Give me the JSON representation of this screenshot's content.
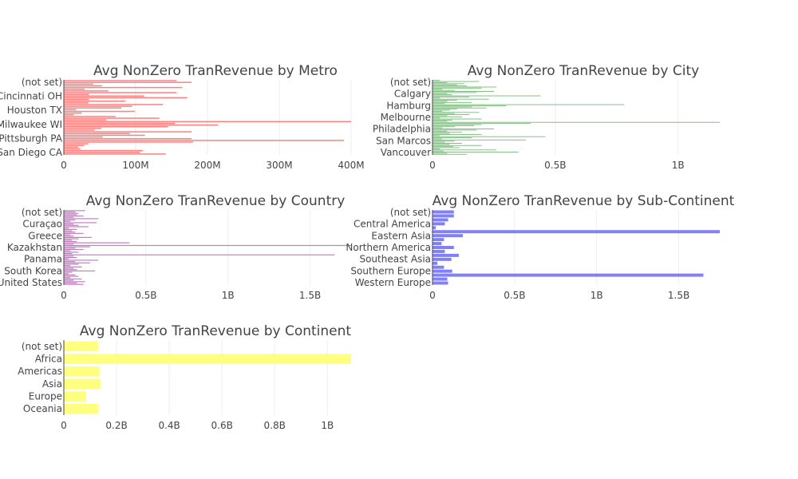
{
  "chart_data": [
    {
      "type": "bar",
      "orientation": "h",
      "title": "Avg NonZero TranRevenue by Metro",
      "color": "#ff7f7f",
      "y_tick_labels": [
        "San Diego CA",
        "Pittsburgh PA",
        "Milwaukee WI",
        "Houston TX",
        "Cincinnati OH",
        "(not set)"
      ],
      "x_tick_labels": [
        "0",
        "100M",
        "200M",
        "300M",
        "400M"
      ],
      "x_ticks": [
        0,
        100000000,
        200000000,
        300000000,
        400000000
      ],
      "xlim": [
        0,
        400000000
      ],
      "values": [
        142000000,
        106000000,
        110000000,
        23000000,
        20000000,
        28000000,
        34000000,
        180000000,
        390000000,
        178000000,
        54000000,
        113000000,
        92000000,
        178000000,
        43000000,
        52000000,
        145000000,
        215000000,
        155000000,
        400000000,
        59000000,
        133000000,
        72000000,
        14000000,
        25000000,
        99000000,
        17000000,
        80000000,
        95000000,
        138000000,
        34000000,
        86000000,
        35000000,
        172000000,
        112000000,
        35000000,
        157000000,
        62000000,
        29000000,
        165000000,
        53000000,
        41000000,
        178000000,
        157000000
      ]
    },
    {
      "type": "bar",
      "orientation": "h",
      "title": "Avg NonZero TranRevenue by City",
      "color": "#7fbf7f",
      "y_tick_labels": [
        "Vancouver",
        "San Marcos",
        "Philadelphia",
        "Melbourne",
        "Hamburg",
        "Calgary",
        "(not set)"
      ],
      "x_tick_labels": [
        "0",
        "0.5B",
        "1B"
      ],
      "x_ticks": [
        0,
        500000000,
        1000000000
      ],
      "xlim": [
        0,
        1170000000
      ],
      "values": [
        140000000,
        60000000,
        350000000,
        45000000,
        260000000,
        30000000,
        110000000,
        85000000,
        200000000,
        70000000,
        120000000,
        50000000,
        90000000,
        380000000,
        40000000,
        160000000,
        460000000,
        30000000,
        200000000,
        70000000,
        120000000,
        60000000,
        180000000,
        250000000,
        40000000,
        90000000,
        170000000,
        200000000,
        400000000,
        1170000000,
        60000000,
        80000000,
        200000000,
        30000000,
        120000000,
        60000000,
        150000000,
        90000000,
        190000000,
        40000000,
        70000000,
        100000000,
        220000000,
        160000000,
        300000000,
        780000000,
        50000000,
        160000000,
        60000000,
        100000000,
        230000000,
        30000000,
        150000000,
        440000000,
        80000000,
        60000000,
        180000000,
        250000000,
        90000000,
        40000000,
        200000000,
        260000000,
        140000000,
        100000000,
        130000000,
        60000000,
        190000000,
        30000000
      ]
    },
    {
      "type": "bar",
      "orientation": "h",
      "title": "Avg NonZero TranRevenue by Country",
      "color": "#bf7fbf",
      "y_tick_labels": [
        "United States",
        "South Korea",
        "Panama",
        "Kazakhstan",
        "Greece",
        "Curaçao",
        "(not set)"
      ],
      "x_tick_labels": [
        "0",
        "0.5B",
        "1B",
        "1.5B"
      ],
      "x_ticks": [
        0,
        500000000,
        1000000000,
        1500000000
      ],
      "xlim": [
        0,
        1750000000
      ],
      "values": [
        120000000,
        80000000,
        130000000,
        60000000,
        110000000,
        40000000,
        90000000,
        70000000,
        30000000,
        50000000,
        190000000,
        80000000,
        60000000,
        110000000,
        40000000,
        90000000,
        160000000,
        70000000,
        210000000,
        30000000,
        80000000,
        60000000,
        1650000000,
        50000000,
        90000000,
        40000000,
        120000000,
        70000000,
        160000000,
        1750000000,
        60000000,
        400000000,
        80000000,
        50000000,
        90000000,
        170000000,
        60000000,
        40000000,
        120000000,
        70000000,
        50000000,
        80000000,
        30000000,
        150000000,
        90000000,
        60000000,
        200000000,
        40000000,
        70000000,
        210000000,
        60000000,
        120000000,
        80000000,
        90000000,
        70000000,
        130000000
      ]
    },
    {
      "type": "bar",
      "orientation": "h",
      "title": "Avg NonZero TranRevenue by Sub-Continent",
      "color": "#7f7fff",
      "y_tick_labels": [
        "Western Europe",
        "Southern Europe",
        "Southeast Asia",
        "Northern America",
        "Eastern Asia",
        "Central America",
        "(not set)"
      ],
      "x_tick_labels": [
        "0",
        "0.5B",
        "1B",
        "1.5B"
      ],
      "x_ticks": [
        0,
        500000000,
        1000000000,
        1500000000
      ],
      "xlim": [
        0,
        1750000000
      ],
      "values": [
        95000000,
        90000000,
        1650000000,
        120000000,
        70000000,
        30000000,
        115000000,
        160000000,
        75000000,
        130000000,
        55000000,
        70000000,
        185000000,
        1750000000,
        20000000,
        75000000,
        95000000,
        130000000,
        130000000
      ]
    },
    {
      "type": "bar",
      "orientation": "h",
      "title": "Avg NonZero TranRevenue by Continent",
      "color": "#ffff7f",
      "categories": [
        "Oceania",
        "Europe",
        "Asia",
        "Americas",
        "Africa",
        "(not set)"
      ],
      "x_tick_labels": [
        "0",
        "0.2B",
        "0.4B",
        "0.6B",
        "0.8B",
        "1B"
      ],
      "x_ticks": [
        0,
        200000000,
        400000000,
        600000000,
        800000000,
        1000000000
      ],
      "xlim": [
        0,
        1090000000
      ],
      "values": [
        130000000,
        85000000,
        140000000,
        135000000,
        1090000000,
        130000000
      ]
    }
  ]
}
